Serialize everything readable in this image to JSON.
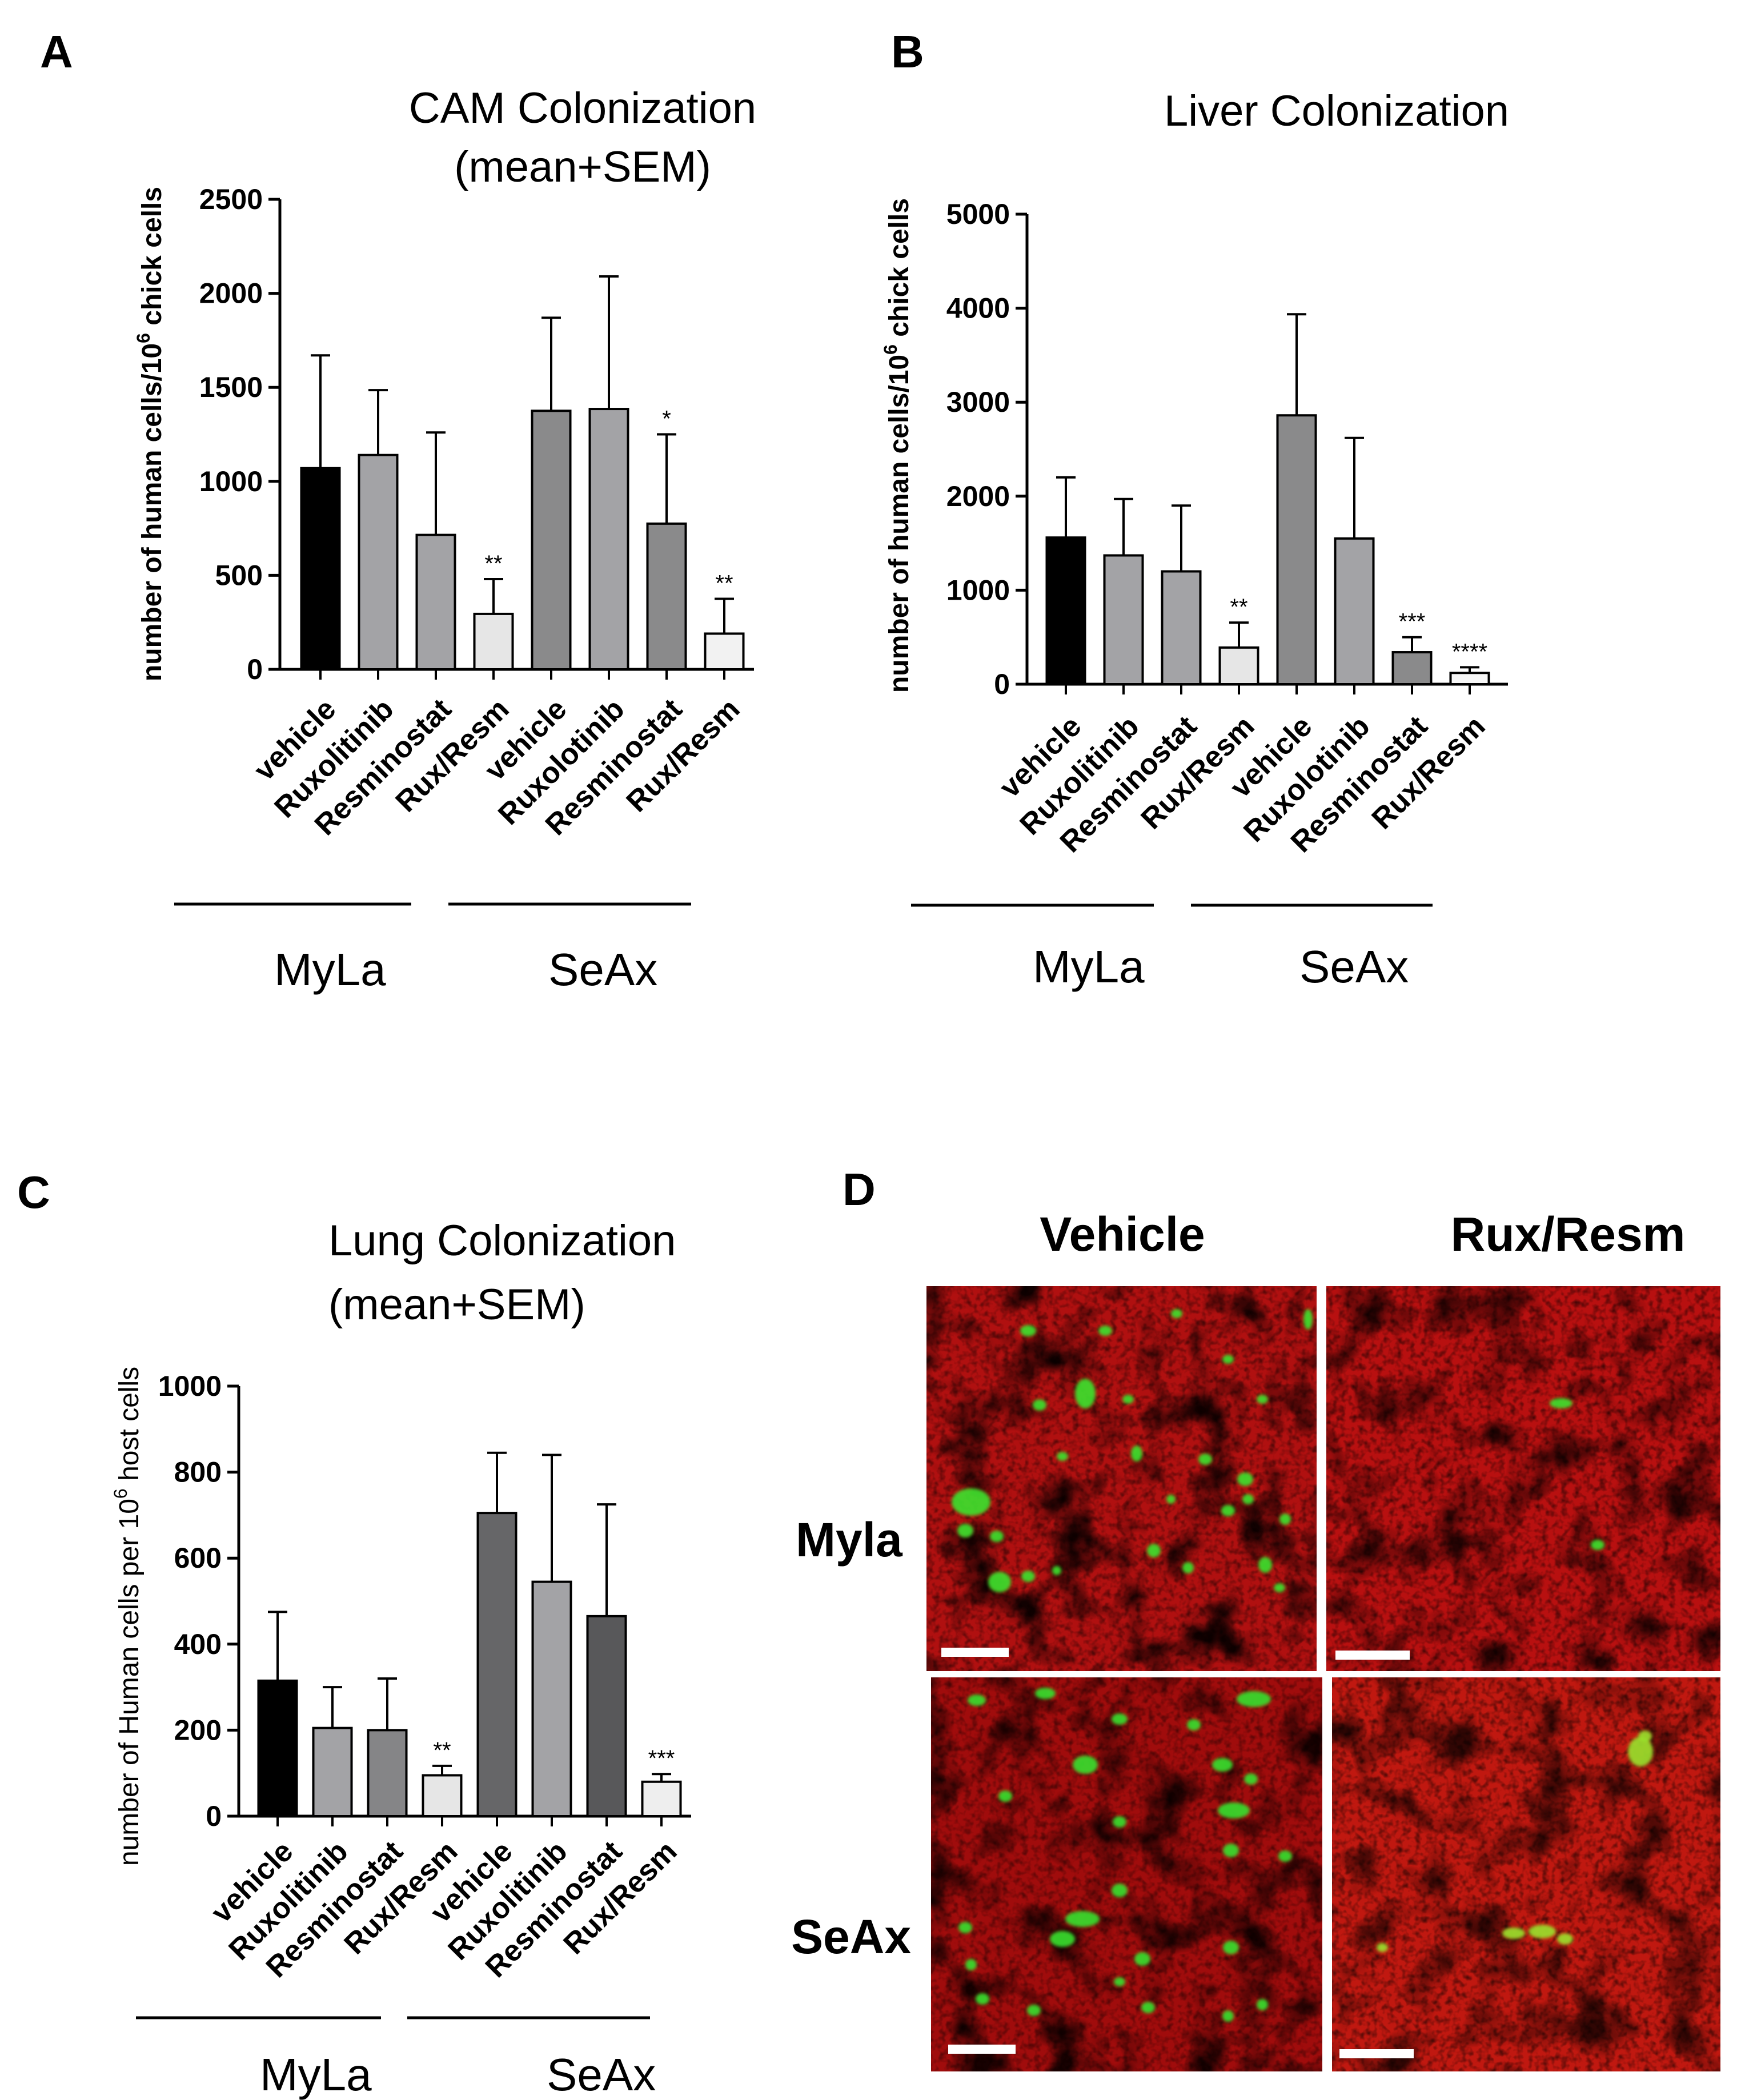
{
  "chart_data": [
    {
      "panel": "A",
      "type": "bar",
      "title": [
        "CAM Colonization",
        "(mean+SEM)"
      ],
      "ylabel": "number of  human  cells/10",
      "ylabel_sup": "6",
      "ylabel_tail": " chick cells",
      "ylim": [
        0,
        2500
      ],
      "yticks": [
        0,
        500,
        1000,
        1500,
        2000,
        2500
      ],
      "categories": [
        "vehicle",
        "Ruxolitinib",
        "Resminostat",
        "Rux/Resm",
        "vehicle",
        "Ruxolotinib",
        "Resminostat",
        "Rux/Resm"
      ],
      "values": [
        1070,
        1140,
        715,
        295,
        1375,
        1385,
        775,
        190
      ],
      "errors": [
        600,
        345,
        545,
        185,
        495,
        705,
        475,
        185
      ],
      "significance": [
        "",
        "",
        "",
        "**",
        "",
        "",
        "*",
        "**"
      ],
      "colors": [
        "#000000",
        "#a3a3a6",
        "#a3a3a6",
        "#e6e6e6",
        "#8a8a8b",
        "#a3a3a6",
        "#8a8a8b",
        "#f2f2f2"
      ],
      "groups": [
        {
          "label": "MyLa",
          "from": 0,
          "to": 3
        },
        {
          "label": "SeAx",
          "from": 4,
          "to": 7
        }
      ]
    },
    {
      "panel": "B",
      "type": "bar",
      "title": [
        "Liver Colonization"
      ],
      "ylabel": "number of  human  cells/10",
      "ylabel_sup": "6",
      "ylabel_tail": " chick cells",
      "ylim": [
        0,
        5000
      ],
      "yticks": [
        0,
        1000,
        2000,
        3000,
        4000,
        5000
      ],
      "categories": [
        "vehicle",
        "Ruxolitinib",
        "Resminostat",
        "Rux/Resm",
        "vehicle",
        "Ruxolotinib",
        "Resminostat",
        "Rux/Resm"
      ],
      "values": [
        1560,
        1370,
        1200,
        390,
        2860,
        1550,
        340,
        120
      ],
      "errors": [
        640,
        600,
        700,
        265,
        1075,
        1070,
        160,
        60
      ],
      "significance": [
        "",
        "",
        "",
        "**",
        "",
        "",
        "***",
        "****"
      ],
      "colors": [
        "#000000",
        "#a3a3a6",
        "#a3a3a6",
        "#e6e6e6",
        "#8a8a8b",
        "#a3a3a6",
        "#8a8a8b",
        "#f7f7f7"
      ],
      "groups": [
        {
          "label": "MyLa",
          "from": 0,
          "to": 3
        },
        {
          "label": "SeAx",
          "from": 4,
          "to": 7
        }
      ]
    },
    {
      "panel": "C",
      "type": "bar",
      "title": [
        "Lung Colonization",
        "(mean+SEM)"
      ],
      "ylabel": "number of Human  cells per 10",
      "ylabel_sup": "6",
      "ylabel_tail": " host cells",
      "ylim": [
        0,
        1000
      ],
      "yticks": [
        0,
        200,
        400,
        600,
        800,
        1000
      ],
      "categories": [
        "vehicle",
        "Ruxolitinib",
        "Resminostat",
        "Rux/Resm",
        "vehicle",
        "Ruxolitinib",
        "Resminostat",
        "Rux/Resm"
      ],
      "values": [
        315,
        205,
        200,
        95,
        705,
        545,
        465,
        80
      ],
      "errors": [
        160,
        95,
        120,
        22,
        140,
        295,
        260,
        18
      ],
      "significance": [
        "",
        "",
        "",
        "**",
        "",
        "",
        "",
        "***"
      ],
      "colors": [
        "#000000",
        "#a3a3a6",
        "#858587",
        "#e6e6e6",
        "#666668",
        "#a3a3a6",
        "#58585a",
        "#eeeeee"
      ],
      "groups": [
        {
          "label": "MyLa",
          "from": 0,
          "to": 3
        },
        {
          "label": "SeAx",
          "from": 4,
          "to": 7
        }
      ]
    }
  ],
  "panels": {
    "a_letter": "A",
    "b_letter": "B",
    "c_letter": "C",
    "d_letter": "D"
  },
  "panel_d": {
    "column_headers": [
      "Vehicle",
      "Rux/Resm"
    ],
    "row_headers": [
      "Myla",
      "SeAx"
    ]
  }
}
